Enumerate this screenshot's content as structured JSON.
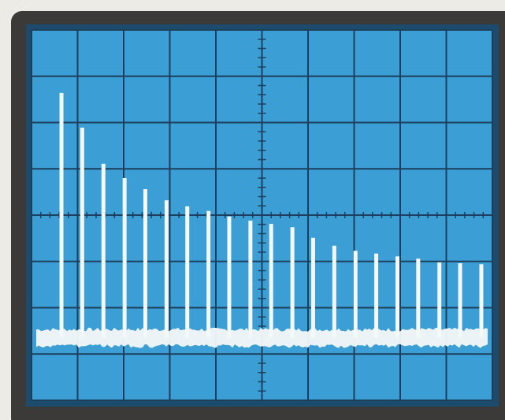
{
  "chart_data": {
    "type": "stem",
    "x": [
      0.65,
      1.1,
      1.56,
      2.02,
      2.47,
      2.93,
      3.38,
      3.84,
      4.29,
      4.75,
      5.2,
      5.66,
      6.11,
      6.57,
      7.03,
      7.48,
      7.94,
      8.39,
      8.85,
      9.3,
      9.76
    ],
    "values": [
      6.64,
      5.89,
      5.11,
      4.8,
      4.56,
      4.32,
      4.19,
      4.09,
      3.97,
      3.88,
      3.81,
      3.74,
      3.51,
      3.34,
      3.23,
      3.17,
      3.11,
      3.06,
      2.98,
      2.96,
      2.94
    ],
    "noise_floor": 1.35,
    "color": "#f4f8f8",
    "xlim": [
      0,
      10
    ],
    "ylim": [
      0,
      8
    ],
    "xticks": [
      0,
      1,
      2,
      3,
      4,
      5,
      6,
      7,
      8,
      9,
      10
    ],
    "yticks": [
      0,
      1,
      2,
      3,
      4,
      5,
      6,
      7,
      8
    ],
    "grid": true
  }
}
